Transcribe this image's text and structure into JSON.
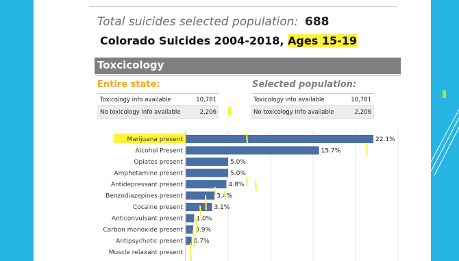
{
  "header": {
    "total_label": "Total suicides selected population:",
    "total_value": "688",
    "subtitle_main": "Colorado Suicides 2004-2018, ",
    "subtitle_highlight": "Ages 15-19"
  },
  "section": {
    "title": "Toxcicology"
  },
  "entire_state": {
    "heading": "Entire state:",
    "rows": [
      {
        "label": "Toxicology info available",
        "value": "10,781"
      },
      {
        "label": "No toxicology info available",
        "value": "2,206"
      }
    ]
  },
  "selected_population": {
    "heading": "Selected population:",
    "rows": [
      {
        "label": "Toxicology info available",
        "value": "10,781"
      },
      {
        "label": "No toxicology info available",
        "value": "2,206"
      }
    ]
  },
  "colors": {
    "accent": "#27b6e4",
    "bar": "#4a6fa5",
    "highlight": "#fff23a",
    "orange": "#f0a820",
    "gray_band": "#7f7f7f",
    "lime": "#b5e61d"
  },
  "chart_data": {
    "type": "bar",
    "orientation": "horizontal",
    "categories": [
      "Marijuana present",
      "Alcohol Present",
      "Opiates present",
      "Amphetamine present",
      "Antidepressant present",
      "Benzodiazepines present",
      "Cocaine present",
      "Anticonvulsant present",
      "Carbon monoxide present",
      "Antipsychotic present",
      "Muscle relaxant present"
    ],
    "values": [
      22.1,
      15.7,
      5.0,
      5.0,
      4.8,
      3.4,
      3.1,
      1.0,
      0.9,
      0.7,
      null
    ],
    "value_labels": [
      "22.1%",
      "15.7%",
      "5.0%",
      "5.0%",
      "4.8%",
      "3.4%",
      "3.1%",
      "1.0%",
      "0.9%",
      "0.7%",
      ""
    ],
    "xlim": [
      0,
      25
    ],
    "grid": true
  }
}
